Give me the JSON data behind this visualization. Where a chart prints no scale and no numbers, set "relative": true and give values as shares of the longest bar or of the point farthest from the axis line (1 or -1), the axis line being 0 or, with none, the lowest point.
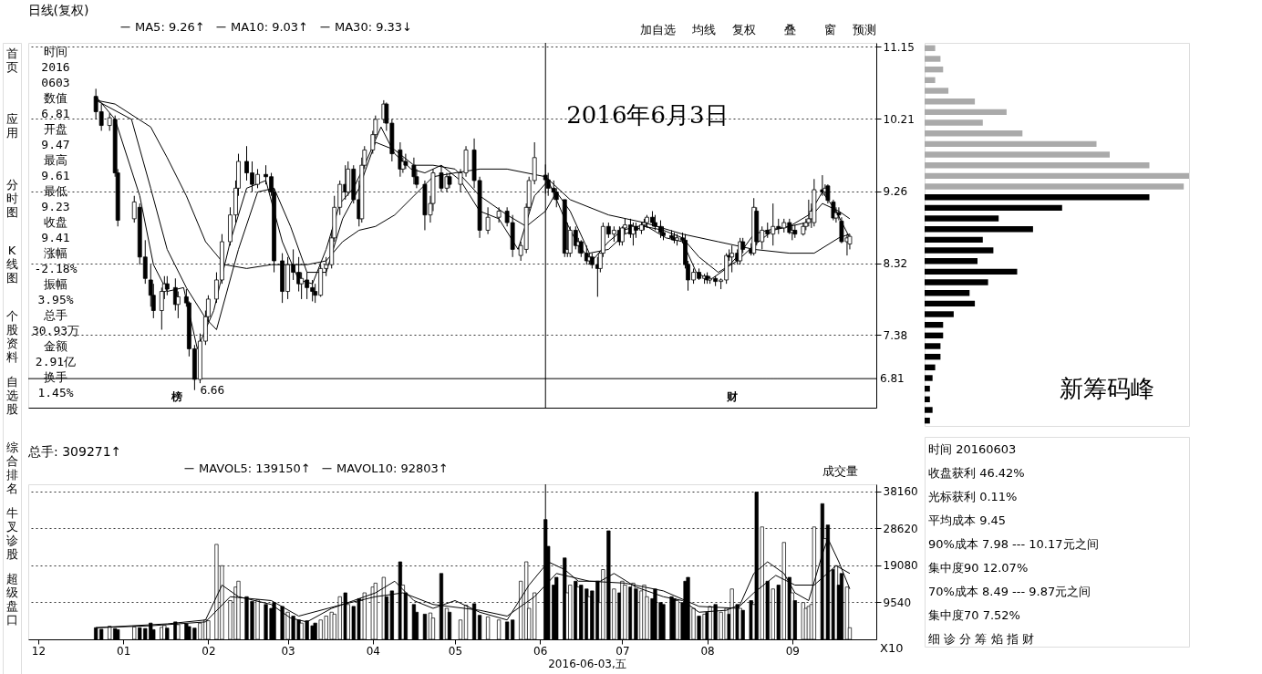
{
  "chart_data": [
    {
      "type": "other",
      "annotations": [
        "首页",
        "应用",
        "分时图",
        "K线图",
        "个股资料",
        "自选股",
        "综合排名",
        "牛叉诊股",
        "超级盘口"
      ]
    },
    {
      "type": "other",
      "annotations": [
        "时间",
        "2016",
        "0603",
        "数值",
        "6.81",
        "开盘",
        "9.47",
        "最高",
        "9.61",
        "最低",
        "9.23",
        "收盘",
        "9.41",
        "涨幅",
        "-2.18%",
        "振幅",
        "3.95%",
        "总手",
        "30.93万",
        "金额",
        "2.91亿",
        "换手",
        "1.45%"
      ]
    },
    {
      "type": "other",
      "annotations": [
        "加自选",
        "均线",
        "复权",
        "叠",
        "窗",
        "预测"
      ]
    },
    {
      "type": "candlestick",
      "title": "日线(复权)",
      "legend": "top",
      "grid": "y",
      "tick_labels": "y",
      "xlim": [
        "2015-11-29",
        "2016-09-30"
      ],
      "ylim": [
        6.43,
        11.2
      ],
      "yticks": [
        11.15,
        10.21,
        9.26,
        8.32,
        7.38
      ],
      "x": [
        "2015-12-22",
        "2015-12-24",
        "2015-12-27",
        "2015-12-29",
        "2015-12-30",
        "2016-01-05",
        "2016-01-07",
        "2016-01-09",
        "2016-01-11",
        "2016-01-12",
        "2016-01-15",
        "2016-01-16",
        "2016-01-17",
        "2016-01-20",
        "2016-01-21",
        "2016-01-24",
        "2016-01-25",
        "2016-01-27",
        "2016-01-29",
        "2016-01-31",
        "2016-02-01",
        "2016-02-04",
        "2016-02-06",
        "2016-02-09",
        "2016-02-11",
        "2016-02-12",
        "2016-02-15",
        "2016-02-17",
        "2016-02-19",
        "2016-02-22",
        "2016-02-24",
        "2016-02-25",
        "2016-02-28",
        "2016-03-01",
        "2016-03-03",
        "2016-03-05",
        "2016-03-06",
        "2016-03-08",
        "2016-03-10",
        "2016-03-11",
        "2016-03-13",
        "2016-03-15",
        "2016-03-17",
        "2016-03-18",
        "2016-03-20",
        "2016-03-22",
        "2016-03-23",
        "2016-03-25",
        "2016-03-27",
        "2016-03-28",
        "2016-03-29",
        "2016-04-01",
        "2016-04-02",
        "2016-04-05",
        "2016-04-06",
        "2016-04-08",
        "2016-04-11",
        "2016-04-12",
        "2016-04-13",
        "2016-04-16",
        "2016-04-17",
        "2016-04-20",
        "2016-04-22",
        "2016-04-23",
        "2016-04-26",
        "2016-04-28",
        "2016-04-29",
        "2016-05-03",
        "2016-05-05",
        "2016-05-08",
        "2016-05-10",
        "2016-05-13",
        "2016-05-17",
        "2016-05-20",
        "2016-05-22",
        "2016-05-25",
        "2016-05-27",
        "2016-05-28",
        "2016-05-30",
        "2016-06-03",
        "2016-06-04",
        "2016-06-06",
        "2016-06-07",
        "2016-06-10",
        "2016-06-11",
        "2016-06-12",
        "2016-06-14",
        "2016-06-15",
        "2016-06-16",
        "2016-06-18",
        "2016-06-19",
        "2016-06-20",
        "2016-06-22",
        "2016-06-23",
        "2016-06-24",
        "2016-06-26",
        "2016-06-28",
        "2016-06-30",
        "2016-07-01",
        "2016-07-02",
        "2016-07-04",
        "2016-07-05",
        "2016-07-06",
        "2016-07-08",
        "2016-07-09",
        "2016-07-10",
        "2016-07-12",
        "2016-07-13",
        "2016-07-15",
        "2016-07-16",
        "2016-07-19",
        "2016-07-20",
        "2016-07-21",
        "2016-07-23",
        "2016-07-24",
        "2016-07-25",
        "2016-07-27",
        "2016-07-29",
        "2016-07-31",
        "2016-08-01",
        "2016-08-02",
        "2016-08-04",
        "2016-08-06",
        "2016-08-08",
        "2016-08-09",
        "2016-08-10",
        "2016-08-12",
        "2016-08-13",
        "2016-08-14",
        "2016-08-17",
        "2016-08-18",
        "2016-08-19",
        "2016-08-21",
        "2016-08-23",
        "2016-08-25",
        "2016-08-27",
        "2016-08-29",
        "2016-08-31",
        "2016-09-01",
        "2016-09-02",
        "2016-09-05",
        "2016-09-06",
        "2016-09-07",
        "2016-09-08",
        "2016-09-09",
        "2016-09-12",
        "2016-09-13",
        "2016-09-14",
        "2016-09-16",
        "2016-09-17",
        "2016-09-18",
        "2016-09-19",
        "2016-09-21",
        "2016-09-22"
      ],
      "ohlc": [
        [
          10.5,
          10.6,
          10.2,
          10.3
        ],
        [
          10.3,
          10.4,
          10.05,
          10.12
        ],
        [
          10.12,
          10.28,
          10.05,
          10.22
        ],
        [
          10.2,
          10.25,
          9.45,
          9.5
        ],
        [
          9.5,
          9.55,
          8.8,
          8.88
        ],
        [
          8.9,
          9.2,
          8.85,
          9.12
        ],
        [
          9.05,
          9.1,
          8.3,
          8.4
        ],
        [
          8.4,
          8.62,
          8.05,
          8.12
        ],
        [
          8.1,
          8.3,
          7.75,
          7.9
        ],
        [
          7.9,
          8.05,
          7.6,
          7.7
        ],
        [
          7.7,
          8.0,
          7.45,
          7.95
        ],
        [
          7.95,
          8.15,
          7.85,
          8.05
        ],
        [
          8.05,
          8.15,
          7.9,
          7.98
        ],
        [
          8.0,
          8.12,
          7.7,
          7.78
        ],
        [
          7.78,
          7.95,
          7.6,
          7.88
        ],
        [
          7.88,
          7.98,
          7.75,
          7.8
        ],
        [
          7.8,
          7.82,
          7.1,
          7.2
        ],
        [
          7.2,
          7.25,
          6.66,
          6.8
        ],
        [
          6.8,
          7.4,
          6.75,
          7.3
        ],
        [
          7.3,
          7.7,
          7.25,
          7.62
        ],
        [
          7.62,
          7.9,
          7.55,
          7.85
        ],
        [
          7.85,
          8.2,
          7.8,
          8.1
        ],
        [
          8.1,
          8.7,
          8.05,
          8.6
        ],
        [
          8.6,
          9.05,
          8.55,
          8.95
        ],
        [
          8.95,
          9.4,
          8.85,
          9.3
        ],
        [
          9.3,
          9.75,
          9.2,
          9.65
        ],
        [
          9.65,
          9.85,
          9.4,
          9.5
        ],
        [
          9.5,
          9.65,
          9.25,
          9.35
        ],
        [
          9.35,
          9.55,
          9.3,
          9.48
        ],
        [
          9.48,
          9.6,
          9.35,
          9.45
        ],
        [
          9.45,
          9.5,
          9.2,
          9.25
        ],
        [
          9.25,
          9.3,
          8.2,
          8.35
        ],
        [
          8.35,
          8.45,
          7.8,
          7.95
        ],
        [
          7.95,
          8.4,
          7.85,
          8.3
        ],
        [
          8.3,
          8.5,
          8.1,
          8.2
        ],
        [
          8.2,
          8.4,
          7.95,
          8.05
        ],
        [
          8.05,
          8.2,
          7.85,
          8.12
        ],
        [
          8.1,
          8.2,
          7.85,
          8.0
        ],
        [
          8.0,
          8.1,
          7.82,
          7.95
        ],
        [
          7.95,
          8.05,
          7.8,
          7.9
        ],
        [
          7.9,
          8.3,
          7.88,
          8.25
        ],
        [
          8.25,
          8.4,
          8.15,
          8.3
        ],
        [
          8.3,
          8.75,
          8.25,
          8.65
        ],
        [
          8.65,
          9.2,
          8.6,
          9.05
        ],
        [
          9.05,
          9.4,
          8.95,
          9.35
        ],
        [
          9.35,
          9.6,
          9.15,
          9.25
        ],
        [
          9.25,
          9.65,
          9.2,
          9.55
        ],
        [
          9.55,
          9.6,
          9.1,
          9.15
        ],
        [
          9.15,
          9.4,
          8.8,
          8.9
        ],
        [
          8.9,
          9.7,
          8.85,
          9.6
        ],
        [
          9.6,
          9.85,
          9.55,
          9.8
        ],
        [
          9.8,
          10.05,
          9.75,
          10.0
        ],
        [
          10.0,
          10.25,
          9.95,
          10.2
        ],
        [
          10.2,
          10.45,
          10.15,
          10.4
        ],
        [
          10.4,
          10.42,
          10.05,
          10.15
        ],
        [
          10.15,
          10.2,
          9.65,
          9.75
        ],
        [
          9.8,
          9.9,
          9.45,
          9.55
        ],
        [
          9.55,
          9.7,
          9.5,
          9.65
        ],
        [
          9.65,
          9.75,
          9.55,
          9.6
        ],
        [
          9.6,
          9.7,
          9.35,
          9.45
        ],
        [
          9.45,
          9.55,
          9.3,
          9.35
        ],
        [
          9.35,
          9.4,
          8.75,
          8.95
        ],
        [
          8.95,
          9.2,
          8.85,
          9.1
        ],
        [
          9.1,
          9.55,
          9.0,
          9.5
        ],
        [
          9.5,
          9.6,
          9.25,
          9.3
        ],
        [
          9.3,
          9.5,
          9.25,
          9.45
        ],
        [
          9.45,
          9.5,
          9.3,
          9.35
        ],
        [
          9.35,
          9.55,
          9.25,
          9.5
        ],
        [
          9.5,
          9.85,
          9.45,
          9.8
        ],
        [
          9.8,
          9.95,
          9.3,
          9.4
        ],
        [
          9.4,
          9.45,
          8.65,
          8.75
        ],
        [
          8.75,
          9.05,
          8.7,
          8.92
        ],
        [
          8.92,
          9.05,
          8.85,
          9.0
        ],
        [
          9.0,
          9.05,
          8.8,
          8.85
        ],
        [
          8.85,
          8.95,
          8.4,
          8.5
        ],
        [
          8.42,
          8.6,
          8.35,
          8.55
        ],
        [
          8.5,
          9.1,
          8.45,
          9.05
        ],
        [
          9.05,
          9.45,
          9.0,
          9.4
        ],
        [
          9.4,
          9.9,
          9.35,
          9.7
        ],
        [
          9.47,
          9.61,
          9.23,
          9.41
        ],
        [
          9.41,
          9.5,
          9.2,
          9.3
        ],
        [
          9.3,
          9.4,
          9.15,
          9.25
        ],
        [
          9.25,
          9.3,
          9.05,
          9.15
        ],
        [
          9.15,
          9.15,
          8.4,
          8.45
        ],
        [
          8.45,
          8.85,
          8.4,
          8.5
        ],
        [
          8.45,
          8.8,
          8.4,
          8.75
        ],
        [
          8.75,
          8.8,
          8.5,
          8.55
        ],
        [
          8.55,
          8.65,
          8.45,
          8.6
        ],
        [
          8.6,
          8.62,
          8.4,
          8.45
        ],
        [
          8.45,
          8.55,
          8.3,
          8.35
        ],
        [
          8.35,
          8.45,
          8.3,
          8.4
        ],
        [
          8.4,
          8.45,
          8.25,
          8.3
        ],
        [
          8.3,
          8.4,
          7.88,
          8.25
        ],
        [
          8.25,
          8.45,
          8.2,
          8.45
        ],
        [
          8.45,
          8.85,
          8.4,
          8.8
        ],
        [
          8.8,
          8.85,
          8.65,
          8.7
        ],
        [
          8.7,
          8.8,
          8.6,
          8.75
        ],
        [
          8.75,
          8.8,
          8.55,
          8.6
        ],
        [
          8.6,
          8.8,
          8.55,
          8.78
        ],
        [
          8.78,
          8.9,
          8.7,
          8.82
        ],
        [
          8.82,
          8.9,
          8.65,
          8.7
        ],
        [
          8.7,
          8.85,
          8.55,
          8.8
        ],
        [
          8.8,
          8.85,
          8.65,
          8.75
        ],
        [
          8.75,
          8.85,
          8.7,
          8.82
        ],
        [
          8.82,
          8.9,
          8.75,
          8.85
        ],
        [
          8.85,
          8.95,
          8.78,
          8.92
        ],
        [
          8.92,
          9.0,
          8.8,
          8.85
        ],
        [
          8.85,
          8.95,
          8.75,
          8.8
        ],
        [
          8.8,
          8.88,
          8.65,
          8.72
        ],
        [
          8.72,
          8.8,
          8.62,
          8.68
        ],
        [
          8.68,
          8.75,
          8.62,
          8.65
        ],
        [
          8.65,
          8.72,
          8.58,
          8.62
        ],
        [
          8.62,
          8.7,
          8.55,
          8.65
        ],
        [
          8.65,
          8.72,
          8.58,
          8.62
        ],
        [
          8.62,
          8.7,
          8.25,
          8.3
        ],
        [
          8.3,
          8.35,
          7.96,
          8.1
        ],
        [
          8.1,
          8.25,
          8.05,
          8.2
        ],
        [
          8.2,
          8.25,
          8.1,
          8.12
        ],
        [
          8.12,
          8.18,
          8.05,
          8.15
        ],
        [
          8.15,
          8.2,
          8.05,
          8.1
        ],
        [
          8.1,
          8.15,
          8.05,
          8.12
        ],
        [
          8.12,
          8.15,
          8.02,
          8.08
        ],
        [
          8.08,
          8.12,
          7.98,
          8.1
        ],
        [
          8.1,
          8.45,
          8.05,
          8.42
        ],
        [
          8.42,
          8.5,
          8.35,
          8.4
        ],
        [
          8.4,
          8.55,
          8.2,
          8.45
        ],
        [
          8.45,
          8.5,
          8.3,
          8.35
        ],
        [
          8.35,
          8.65,
          8.3,
          8.6
        ],
        [
          8.6,
          8.65,
          8.45,
          8.5
        ],
        [
          8.5,
          8.58,
          8.42,
          8.45
        ],
        [
          8.45,
          9.17,
          8.42,
          9.05
        ],
        [
          9.0,
          9.05,
          8.55,
          8.6
        ],
        [
          8.6,
          8.8,
          8.5,
          8.75
        ],
        [
          8.75,
          8.85,
          8.65,
          8.7
        ],
        [
          8.7,
          9.1,
          8.55,
          8.8
        ],
        [
          8.8,
          8.9,
          8.7,
          8.78
        ],
        [
          8.78,
          8.9,
          8.72,
          8.85
        ],
        [
          8.85,
          8.9,
          8.7,
          8.72
        ],
        [
          8.72,
          8.8,
          8.62,
          8.75
        ],
        [
          8.75,
          8.82,
          8.65,
          8.7
        ],
        [
          8.7,
          8.85,
          8.68,
          8.8
        ],
        [
          8.8,
          8.9,
          8.75,
          8.85
        ],
        [
          8.85,
          9.15,
          8.8,
          8.9
        ],
        [
          8.9,
          9.1,
          8.78,
          9.0
        ],
        [
          8.85,
          9.42,
          8.8,
          9.28
        ],
        [
          9.28,
          9.47,
          9.2,
          9.25
        ],
        [
          9.25,
          9.35,
          9.2,
          9.3
        ],
        [
          9.33,
          9.35,
          9.1,
          9.14
        ],
        [
          9.12,
          9.15,
          8.88,
          8.91
        ],
        [
          8.91,
          9.05,
          8.85,
          8.98
        ],
        [
          8.98,
          9.05,
          8.88,
          8.95
        ],
        [
          8.87,
          8.92,
          8.58,
          8.6
        ],
        [
          8.6,
          8.7,
          8.42,
          8.65
        ],
        [
          8.57,
          8.7,
          8.5,
          8.67
        ]
      ],
      "series": [
        {
          "name": "MA5: 9.26↑",
          "color": "#000000",
          "type": "line",
          "x": [
            "2015-12-22",
            "2015-12-29",
            "2016-01-07",
            "2016-01-12",
            "2016-01-17",
            "2016-01-23",
            "2016-01-28",
            "2016-02-03",
            "2016-02-09",
            "2016-02-15",
            "2016-02-22",
            "2016-02-28",
            "2016-03-05",
            "2016-03-10",
            "2016-03-15",
            "2016-03-20",
            "2016-03-25",
            "2016-03-29",
            "2016-04-04",
            "2016-04-09",
            "2016-04-15",
            "2016-04-20",
            "2016-04-26",
            "2016-05-03",
            "2016-05-10",
            "2016-05-17",
            "2016-05-24",
            "2016-05-30",
            "2016-06-04",
            "2016-06-10",
            "2016-06-15",
            "2016-06-20",
            "2016-06-26",
            "2016-07-01",
            "2016-07-09",
            "2016-07-17",
            "2016-07-23",
            "2016-07-28",
            "2016-08-02",
            "2016-08-08",
            "2016-08-13",
            "2016-08-18",
            "2016-08-23",
            "2016-08-31",
            "2016-09-07",
            "2016-09-12",
            "2016-09-17",
            "2016-09-22"
          ],
          "values": [
            10.5,
            10.2,
            9.2,
            8.3,
            7.95,
            8.0,
            7.2,
            7.7,
            8.6,
            9.3,
            9.4,
            8.6,
            8.1,
            8.05,
            8.5,
            9.1,
            9.3,
            9.6,
            10.1,
            9.75,
            9.55,
            9.5,
            9.6,
            9.4,
            9.0,
            8.9,
            8.5,
            9.2,
            9.4,
            8.9,
            8.55,
            8.35,
            8.6,
            8.75,
            8.82,
            8.65,
            8.6,
            8.2,
            8.1,
            8.25,
            8.45,
            8.7,
            8.75,
            8.8,
            8.95,
            9.25,
            9.0,
            8.65
          ]
        },
        {
          "name": "MA10: 9.03↑",
          "color": "#000000",
          "type": "line",
          "x": [
            "2015-12-22",
            "2016-01-04",
            "2016-01-11",
            "2016-01-17",
            "2016-01-24",
            "2016-01-31",
            "2016-02-04",
            "2016-02-12",
            "2016-02-19",
            "2016-02-25",
            "2016-03-02",
            "2016-03-08",
            "2016-03-15",
            "2016-03-21",
            "2016-03-27",
            "2016-04-02",
            "2016-04-09",
            "2016-04-16",
            "2016-04-23",
            "2016-05-01",
            "2016-05-10",
            "2016-05-20",
            "2016-05-27",
            "2016-06-03",
            "2016-06-07",
            "2016-06-12",
            "2016-06-19",
            "2016-06-26",
            "2016-07-02",
            "2016-07-09",
            "2016-07-16",
            "2016-07-23",
            "2016-07-29",
            "2016-08-05",
            "2016-08-12",
            "2016-08-18",
            "2016-08-25",
            "2016-08-31",
            "2016-09-06",
            "2016-09-12",
            "2016-09-18",
            "2016-09-22"
          ],
          "values": [
            10.45,
            10.2,
            9.3,
            8.5,
            8.0,
            7.6,
            7.45,
            8.5,
            9.25,
            9.3,
            8.8,
            8.2,
            8.2,
            8.9,
            9.3,
            9.9,
            9.8,
            9.6,
            9.6,
            9.55,
            9.2,
            8.95,
            8.8,
            9.0,
            9.25,
            9.0,
            8.45,
            8.5,
            8.7,
            8.8,
            8.75,
            8.65,
            8.4,
            8.2,
            8.35,
            8.55,
            8.75,
            8.8,
            8.85,
            9.1,
            9.0,
            8.9
          ]
        },
        {
          "name": "MA30: 9.33↓",
          "color": "#000000",
          "type": "line",
          "x": [
            "2015-12-22",
            "2015-12-29",
            "2016-01-11",
            "2016-01-17",
            "2016-01-24",
            "2016-01-31",
            "2016-02-07",
            "2016-02-15",
            "2016-02-24",
            "2016-03-02",
            "2016-03-08",
            "2016-03-15",
            "2016-03-21",
            "2016-03-27",
            "2016-04-02",
            "2016-04-09",
            "2016-04-16",
            "2016-04-23",
            "2016-05-01",
            "2016-05-10",
            "2016-05-20",
            "2016-06-03",
            "2016-06-12",
            "2016-06-26",
            "2016-07-09",
            "2016-07-23",
            "2016-08-05",
            "2016-08-18",
            "2016-08-31",
            "2016-09-09",
            "2016-09-18",
            "2016-09-22"
          ],
          "values": [
            10.45,
            10.4,
            10.1,
            9.7,
            9.2,
            8.6,
            8.3,
            8.25,
            8.3,
            8.3,
            8.3,
            8.35,
            8.6,
            8.75,
            8.8,
            8.95,
            9.2,
            9.45,
            9.5,
            9.55,
            9.55,
            9.45,
            9.15,
            8.95,
            8.85,
            8.7,
            8.6,
            8.5,
            8.45,
            8.45,
            8.65,
            8.7
          ]
        }
      ],
      "ref_lines": [
        {
          "axis": "y",
          "value": 6.81,
          "label": "6.81"
        },
        {
          "axis": "x",
          "value": "2016-06-03"
        }
      ],
      "annotations": [
        "2016年6月3日",
        "榜",
        "财",
        {
          "text": "6.66",
          "x": "2016-01-27",
          "y": 6.66
        }
      ]
    },
    {
      "type": "bar",
      "title": "总手: 309271↑",
      "legend": "top",
      "grid": "y",
      "xlim": [
        "2015-11-29",
        "2016-09-30"
      ],
      "xticks": [
        {
          "value": "2015-12",
          "label": "12"
        },
        {
          "value": "2016-01",
          "label": "01"
        },
        {
          "value": "2016-02",
          "label": "02"
        },
        {
          "value": "2016-03",
          "label": "03"
        },
        {
          "value": "2016-04",
          "label": "04"
        },
        {
          "value": "2016-05",
          "label": "05"
        },
        {
          "value": "2016-06",
          "label": "06"
        },
        {
          "value": "2016-07",
          "label": "07"
        },
        {
          "value": "2016-08",
          "label": "08"
        },
        {
          "value": "2016-09",
          "label": "09"
        }
      ],
      "ylim": [
        0,
        40000
      ],
      "yticks": [
        9540,
        19080,
        28620,
        38160
      ],
      "x": [
        "2015-12-22",
        "2015-12-24",
        "2015-12-27",
        "2015-12-29",
        "2015-12-30",
        "2016-01-05",
        "2016-01-07",
        "2016-01-09",
        "2016-01-11",
        "2016-01-12",
        "2016-01-15",
        "2016-01-16",
        "2016-01-17",
        "2016-01-20",
        "2016-01-21",
        "2016-01-24",
        "2016-01-25",
        "2016-01-27",
        "2016-01-29",
        "2016-01-31",
        "2016-02-01",
        "2016-02-04",
        "2016-02-06",
        "2016-02-09",
        "2016-02-11",
        "2016-02-12",
        "2016-02-15",
        "2016-02-17",
        "2016-02-19",
        "2016-02-22",
        "2016-02-24",
        "2016-02-25",
        "2016-02-28",
        "2016-03-01",
        "2016-03-03",
        "2016-03-05",
        "2016-03-06",
        "2016-03-08",
        "2016-03-10",
        "2016-03-11",
        "2016-03-13",
        "2016-03-15",
        "2016-03-17",
        "2016-03-18",
        "2016-03-20",
        "2016-03-22",
        "2016-03-23",
        "2016-03-25",
        "2016-03-27",
        "2016-03-28",
        "2016-03-29",
        "2016-04-01",
        "2016-04-02",
        "2016-04-05",
        "2016-04-06",
        "2016-04-08",
        "2016-04-11",
        "2016-04-12",
        "2016-04-13",
        "2016-04-16",
        "2016-04-17",
        "2016-04-20",
        "2016-04-22",
        "2016-04-23",
        "2016-04-26",
        "2016-04-28",
        "2016-04-29",
        "2016-05-03",
        "2016-05-05",
        "2016-05-08",
        "2016-05-10",
        "2016-05-13",
        "2016-05-17",
        "2016-05-20",
        "2016-05-22",
        "2016-05-25",
        "2016-05-27",
        "2016-05-28",
        "2016-05-30",
        "2016-06-03",
        "2016-06-04",
        "2016-06-06",
        "2016-06-07",
        "2016-06-10",
        "2016-06-11",
        "2016-06-12",
        "2016-06-14",
        "2016-06-15",
        "2016-06-16",
        "2016-06-18",
        "2016-06-19",
        "2016-06-20",
        "2016-06-22",
        "2016-06-23",
        "2016-06-24",
        "2016-06-26",
        "2016-06-28",
        "2016-06-30",
        "2016-07-01",
        "2016-07-02",
        "2016-07-04",
        "2016-07-05",
        "2016-07-06",
        "2016-07-08",
        "2016-07-09",
        "2016-07-10",
        "2016-07-12",
        "2016-07-13",
        "2016-07-15",
        "2016-07-16",
        "2016-07-19",
        "2016-07-20",
        "2016-07-21",
        "2016-07-23",
        "2016-07-24",
        "2016-07-25",
        "2016-07-27",
        "2016-07-29",
        "2016-07-31",
        "2016-08-01",
        "2016-08-02",
        "2016-08-04",
        "2016-08-06",
        "2016-08-08",
        "2016-08-09",
        "2016-08-10",
        "2016-08-12",
        "2016-08-13",
        "2016-08-14",
        "2016-08-17",
        "2016-08-18",
        "2016-08-19",
        "2016-08-21",
        "2016-08-23",
        "2016-08-25",
        "2016-08-27",
        "2016-08-29",
        "2016-08-31",
        "2016-09-01",
        "2016-09-02",
        "2016-09-05",
        "2016-09-06",
        "2016-09-07",
        "2016-09-08",
        "2016-09-09",
        "2016-09-12",
        "2016-09-13",
        "2016-09-14",
        "2016-09-16",
        "2016-09-17",
        "2016-09-18",
        "2016-09-19",
        "2016-09-21",
        "2016-09-22"
      ],
      "values": [
        3000,
        2600,
        3400,
        2800,
        2500,
        3200,
        3000,
        2800,
        4200,
        2500,
        3100,
        3600,
        2900,
        4500,
        3800,
        4000,
        3300,
        2900,
        4200,
        5000,
        4800,
        24500,
        19000,
        10000,
        13500,
        15000,
        11000,
        9800,
        10200,
        9000,
        8000,
        9500,
        8500,
        7000,
        6000,
        5000,
        4200,
        4800,
        3500,
        4200,
        5000,
        6000,
        7000,
        6500,
        11000,
        12000,
        9000,
        8500,
        10500,
        10000,
        12000,
        13500,
        14500,
        16000,
        11000,
        12500,
        20000,
        14000,
        12000,
        9000,
        7000,
        6500,
        6800,
        5500,
        17000,
        8000,
        7000,
        5000,
        8800,
        9200,
        6200,
        5800,
        5000,
        4500,
        5000,
        15000,
        20000,
        8000,
        12000,
        30900,
        24000,
        14000,
        16000,
        21000,
        12000,
        14000,
        15000,
        13500,
        14000,
        13000,
        11000,
        12500,
        15000,
        9500,
        18000,
        28000,
        13000,
        12000,
        15000,
        14000,
        13500,
        14500,
        13000,
        12500,
        14000,
        11000,
        10500,
        13000,
        9500,
        9000,
        11000,
        10500,
        10000,
        9500,
        15000,
        16000,
        8000,
        6000,
        6500,
        7000,
        8500,
        9000,
        7000,
        8000,
        6500,
        13000,
        9000,
        8000,
        7500,
        10000,
        9000,
        38000,
        29000,
        15000,
        13000,
        14000,
        25000,
        16000,
        12000,
        10000,
        9500,
        8000,
        8500,
        9000,
        29000,
        35000,
        26000,
        29500,
        18000,
        19000,
        14000,
        17000,
        13500,
        3000
      ],
      "series": [
        {
          "name": "MAVOL5: 139150↑",
          "color": "#000000",
          "type": "line",
          "x": [
            "2015-12-22",
            "2016-01-04",
            "2016-01-17",
            "2016-01-31",
            "2016-02-06",
            "2016-02-12",
            "2016-02-24",
            "2016-03-02",
            "2016-03-08",
            "2016-03-17",
            "2016-03-25",
            "2016-04-02",
            "2016-04-09",
            "2016-04-16",
            "2016-04-23",
            "2016-05-01",
            "2016-05-10",
            "2016-05-20",
            "2016-05-28",
            "2016-06-04",
            "2016-06-10",
            "2016-06-15",
            "2016-06-23",
            "2016-06-28",
            "2016-07-06",
            "2016-07-16",
            "2016-07-23",
            "2016-07-29",
            "2016-08-08",
            "2016-08-13",
            "2016-08-18",
            "2016-08-23",
            "2016-08-29",
            "2016-09-02",
            "2016-09-07",
            "2016-09-12",
            "2016-09-14",
            "2016-09-18",
            "2016-09-22"
          ],
          "values": [
            3000,
            3500,
            4000,
            5000,
            14000,
            11000,
            9000,
            5500,
            4500,
            8000,
            10000,
            12000,
            15000,
            10000,
            8000,
            10000,
            7000,
            5000,
            14000,
            20000,
            18000,
            15000,
            15000,
            17000,
            13500,
            11000,
            10000,
            7000,
            7500,
            9000,
            17000,
            20000,
            17000,
            12000,
            10000,
            22000,
            26000,
            20000,
            13000
          ]
        },
        {
          "name": "MAVOL10: 92803↑",
          "color": "#000000",
          "type": "line",
          "x": [
            "2015-12-22",
            "2016-01-11",
            "2016-01-31",
            "2016-02-09",
            "2016-02-24",
            "2016-03-05",
            "2016-03-21",
            "2016-04-02",
            "2016-04-12",
            "2016-04-23",
            "2016-05-10",
            "2016-05-20",
            "2016-05-30",
            "2016-06-07",
            "2016-06-19",
            "2016-07-02",
            "2016-07-16",
            "2016-07-29",
            "2016-08-12",
            "2016-08-18",
            "2016-08-26",
            "2016-09-02",
            "2016-09-09",
            "2016-09-17",
            "2016-09-22"
          ],
          "values": [
            3000,
            3500,
            4500,
            11000,
            10000,
            6000,
            9000,
            11000,
            12000,
            9000,
            7500,
            6000,
            11000,
            17000,
            15000,
            14500,
            12500,
            8500,
            8000,
            12000,
            16500,
            14000,
            14000,
            19000,
            17000
          ]
        }
      ],
      "colors": [
        "#000000",
        "#000000",
        "#ffffff",
        "#000000",
        "#000000",
        "#ffffff",
        "#000000",
        "#000000",
        "#000000",
        "#000000",
        "#ffffff",
        "#ffffff",
        "#000000",
        "#000000",
        "#ffffff",
        "#000000",
        "#000000",
        "#000000",
        "#ffffff",
        "#ffffff",
        "#ffffff",
        "#ffffff",
        "#ffffff",
        "#ffffff",
        "#ffffff",
        "#ffffff",
        "#000000",
        "#000000",
        "#ffffff",
        "#000000",
        "#000000",
        "#000000",
        "#000000",
        "#ffffff",
        "#000000",
        "#000000",
        "#ffffff",
        "#000000",
        "#000000",
        "#000000",
        "#ffffff",
        "#ffffff",
        "#ffffff",
        "#ffffff",
        "#ffffff",
        "#000000",
        "#ffffff",
        "#000000",
        "#000000",
        "#ffffff",
        "#ffffff",
        "#ffffff",
        "#ffffff",
        "#ffffff",
        "#000000",
        "#000000",
        "#000000",
        "#ffffff",
        "#000000",
        "#000000",
        "#000000",
        "#000000",
        "#ffffff",
        "#ffffff",
        "#000000",
        "#ffffff",
        "#000000",
        "#ffffff",
        "#ffffff",
        "#000000",
        "#000000",
        "#ffffff",
        "#ffffff",
        "#000000",
        "#000000",
        "#ffffff",
        "#ffffff",
        "#ffffff",
        "#ffffff",
        "#000000",
        "#000000",
        "#000000",
        "#000000",
        "#000000",
        "#ffffff",
        "#ffffff",
        "#000000",
        "#ffffff",
        "#000000",
        "#000000",
        "#ffffff",
        "#000000",
        "#000000",
        "#ffffff",
        "#ffffff",
        "#000000",
        "#ffffff",
        "#000000",
        "#ffffff",
        "#ffffff",
        "#000000",
        "#ffffff",
        "#000000",
        "#ffffff",
        "#ffffff",
        "#ffffff",
        "#000000",
        "#000000",
        "#000000",
        "#000000",
        "#000000",
        "#000000",
        "#ffffff",
        "#000000",
        "#000000",
        "#000000",
        "#ffffff",
        "#000000",
        "#ffffff",
        "#000000",
        "#ffffff",
        "#000000",
        "#ffffff",
        "#ffffff",
        "#000000",
        "#ffffff",
        "#000000",
        "#ffffff",
        "#000000",
        "#000000",
        "#ffffff",
        "#000000",
        "#ffffff",
        "#000000",
        "#ffffff",
        "#000000",
        "#ffffff",
        "#000000",
        "#ffffff",
        "#000000",
        "#ffffff",
        "#ffffff",
        "#ffffff",
        "#ffffff",
        "#ffffff",
        "#000000",
        "#ffffff",
        "#000000",
        "#000000",
        "#ffffff",
        "#000000",
        "#000000",
        "#ffffff",
        "#ffffff"
      ],
      "ref_lines": [
        {
          "axis": "x",
          "value": "2016-06-03",
          "label": "2016-06-03,五"
        }
      ],
      "annotations": [
        "成交量",
        "X10"
      ]
    },
    {
      "type": "bar",
      "orientation": "horizontal",
      "relative": true,
      "categories": [
        null,
        null,
        null,
        null,
        null,
        null,
        null,
        null,
        null,
        null,
        null,
        null,
        null,
        null,
        null,
        null,
        null,
        null,
        null,
        null,
        null,
        null,
        null,
        null,
        null,
        null,
        null,
        null,
        null,
        null,
        null,
        null,
        null,
        null,
        null,
        null
      ],
      "values": [
        0.04,
        0.06,
        0.07,
        0.04,
        0.09,
        0.19,
        0.31,
        0.22,
        0.37,
        0.65,
        0.7,
        0.85,
        1,
        0.98,
        0.85,
        0.52,
        0.28,
        0.41,
        0.22,
        0.26,
        0.2,
        0.35,
        0.24,
        0.17,
        0.19,
        0.11,
        0.07,
        0.07,
        0.06,
        0.06,
        0.04,
        0.03,
        0.02,
        0.02,
        0.03,
        0.02
      ],
      "colors": [
        "#aaaaaa",
        "#aaaaaa",
        "#aaaaaa",
        "#aaaaaa",
        "#aaaaaa",
        "#aaaaaa",
        "#aaaaaa",
        "#aaaaaa",
        "#aaaaaa",
        "#aaaaaa",
        "#aaaaaa",
        "#aaaaaa",
        "#aaaaaa",
        "#aaaaaa",
        "#000000",
        "#000000",
        "#000000",
        "#000000",
        "#000000",
        "#000000",
        "#000000",
        "#000000",
        "#000000",
        "#000000",
        "#000000",
        "#000000",
        "#000000",
        "#000000",
        "#000000",
        "#000000",
        "#000000",
        "#000000",
        "#000000",
        "#000000",
        "#000000",
        "#000000"
      ],
      "annotations": [
        "新筹码峰"
      ]
    },
    {
      "type": "other",
      "annotations": [
        "时间  20160603",
        "收盘获利  46.42%",
        "光标获利  0.11%",
        "平均成本  9.45",
        "90%成本  7.98 ---  10.17元之间",
        "集中度90  12.07%",
        "70%成本  8.49 ---  9.87元之间",
        "集中度70  7.52%",
        "细 诊 分 筹 焰 指 财"
      ]
    }
  ]
}
